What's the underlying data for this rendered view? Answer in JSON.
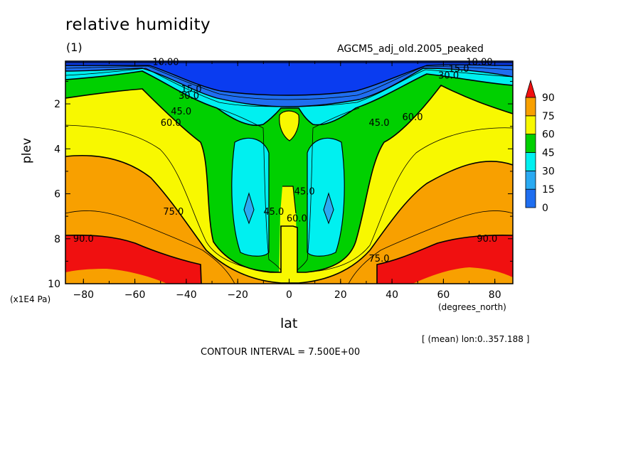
{
  "header": {
    "title": "relative humidity",
    "panel": "(1)",
    "dataset": "AGCM5_adj_old.2005_peaked"
  },
  "axes": {
    "ylabel": "plev",
    "yunit": "(x1E4 Pa)",
    "xlabel": "lat",
    "xunit": "(degrees_north)"
  },
  "footer": {
    "mean_info": "[ (mean) lon:0..357.188 ]",
    "contour_interval": "CONTOUR INTERVAL = 7.500E+00"
  },
  "colors": {
    "c0_15": "#1f6ef0",
    "c15_30": "#2aaaf2",
    "c30_45": "#00f0f0",
    "c45_60": "#00d000",
    "c60_75": "#f8f800",
    "c75_90": "#f8a000",
    "c90": "#f01010",
    "top_band": "#0a3cf0"
  },
  "chart_data": {
    "type": "contour",
    "x": {
      "name": "lat",
      "unit": "degrees_north",
      "range": [
        -87,
        87
      ],
      "ticks": [
        -80,
        -60,
        -40,
        -20,
        0,
        20,
        40,
        60,
        80
      ]
    },
    "y": {
      "name": "plev",
      "unit": "x1E4 Pa",
      "range": [
        0.1,
        10
      ],
      "inverted": true,
      "ticks": [
        2,
        4,
        6,
        8,
        10
      ]
    },
    "contour_interval": 7.5,
    "contour_labels": [
      {
        "value": "10.00",
        "lat": -48,
        "plev": 0.15
      },
      {
        "value": "10.00",
        "lat": 74,
        "plev": 0.15
      },
      {
        "value": "15.0",
        "lat": 66,
        "plev": 0.45
      },
      {
        "value": "30.0",
        "lat": 62,
        "plev": 0.75
      },
      {
        "value": "15.0",
        "lat": -38,
        "plev": 1.35
      },
      {
        "value": "30.0",
        "lat": -39,
        "plev": 1.65
      },
      {
        "value": "45.0",
        "lat": -42,
        "plev": 2.35
      },
      {
        "value": "60.0",
        "lat": -46,
        "plev": 2.85
      },
      {
        "value": "45.0",
        "lat": 35,
        "plev": 2.85
      },
      {
        "value": "60.0",
        "lat": 48,
        "plev": 2.6
      },
      {
        "value": "45.0",
        "lat": 6,
        "plev": 5.9
      },
      {
        "value": "45.0",
        "lat": -6,
        "plev": 6.8
      },
      {
        "value": "60.0",
        "lat": 3,
        "plev": 7.1
      },
      {
        "value": "75.0",
        "lat": -45,
        "plev": 6.8
      },
      {
        "value": "75.0",
        "lat": 35,
        "plev": 8.9
      },
      {
        "value": "90.0",
        "lat": -80,
        "plev": 8.0
      },
      {
        "value": "90.0",
        "lat": 77,
        "plev": 8.0
      }
    ],
    "colorbar": {
      "levels": [
        0,
        15,
        30,
        45,
        60,
        75,
        90
      ],
      "labels": [
        "0",
        "15",
        "30",
        "45",
        "60",
        "75",
        "90"
      ]
    }
  }
}
